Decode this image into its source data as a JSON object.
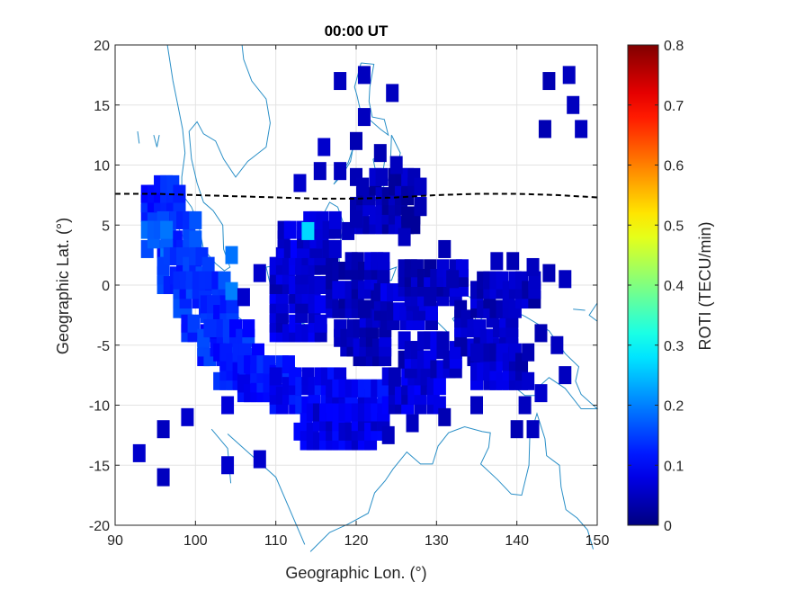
{
  "chart_data": {
    "type": "heatmap",
    "title": "00:00 UT",
    "xlabel": "Geographic Lon. (°)",
    "ylabel": "Geographic Lat. (°)",
    "xlim": [
      90,
      150
    ],
    "ylim": [
      -20,
      20
    ],
    "xticks": [
      90,
      100,
      110,
      120,
      130,
      140,
      150
    ],
    "yticks": [
      20,
      15,
      10,
      5,
      0,
      -5,
      -10,
      -15,
      -20
    ],
    "grid": true,
    "colorbar": {
      "label": "ROTI (TECU/min)",
      "range": [
        0,
        0.8
      ],
      "ticks": [
        0,
        0.1,
        0.2,
        0.3,
        0.4,
        0.5,
        0.6,
        0.7,
        0.8
      ],
      "colormap": "jet"
    },
    "magnetic_equator": {
      "style": "dashed",
      "color": "#000000",
      "points": [
        [
          90,
          7.6
        ],
        [
          95,
          7.6
        ],
        [
          100,
          7.5
        ],
        [
          105,
          7.4
        ],
        [
          110,
          7.3
        ],
        [
          115,
          7.2
        ],
        [
          120,
          7.2
        ],
        [
          125,
          7.3
        ],
        [
          130,
          7.5
        ],
        [
          135,
          7.6
        ],
        [
          140,
          7.6
        ],
        [
          145,
          7.5
        ],
        [
          150,
          7.3
        ]
      ]
    },
    "coastline_color": "#2a8fc7",
    "clusters": [
      {
        "lon": [
          94,
          98
        ],
        "lat": [
          6,
          9
        ],
        "roti": 0.12
      },
      {
        "lon": [
          96,
          100
        ],
        "lat": [
          3,
          6
        ],
        "roti": 0.14
      },
      {
        "lon": [
          94,
          97
        ],
        "lat": [
          3,
          5
        ],
        "roti": 0.18
      },
      {
        "lon": [
          96,
          102
        ],
        "lat": [
          0,
          3
        ],
        "roti": 0.13
      },
      {
        "lon": [
          98,
          104
        ],
        "lat": [
          -2,
          1
        ],
        "roti": 0.14
      },
      {
        "lon": [
          99,
          105
        ],
        "lat": [
          -4,
          -1
        ],
        "roti": 0.12
      },
      {
        "lon": [
          101,
          107
        ],
        "lat": [
          -6,
          -3
        ],
        "roti": 0.13
      },
      {
        "lon": [
          103,
          109
        ],
        "lat": [
          -8,
          -5
        ],
        "roti": 0.12
      },
      {
        "lon": [
          106,
          112
        ],
        "lat": [
          -9,
          -6
        ],
        "roti": 0.11
      },
      {
        "lon": [
          110,
          118
        ],
        "lat": [
          -10,
          -7
        ],
        "roti": 0.1
      },
      {
        "lon": [
          117,
          124
        ],
        "lat": [
          -11,
          -8
        ],
        "roti": 0.09
      },
      {
        "lon": [
          113,
          124
        ],
        "lat": [
          -13,
          -10
        ],
        "roti": 0.08
      },
      {
        "lon": [
          124,
          131
        ],
        "lat": [
          -10,
          -7
        ],
        "roti": 0.07
      },
      {
        "lon": [
          126,
          133
        ],
        "lat": [
          -7,
          -4
        ],
        "roti": 0.06
      },
      {
        "lon": [
          110,
          116
        ],
        "lat": [
          -4,
          0
        ],
        "roti": 0.07
      },
      {
        "lon": [
          110,
          116
        ],
        "lat": [
          0,
          3
        ],
        "roti": 0.06
      },
      {
        "lon": [
          118,
          124
        ],
        "lat": [
          -6,
          -2
        ],
        "roti": 0.05
      },
      {
        "lon": [
          117,
          124
        ],
        "lat": [
          -2,
          2
        ],
        "roti": 0.05
      },
      {
        "lon": [
          123,
          130
        ],
        "lat": [
          -3,
          0
        ],
        "roti": 0.06
      },
      {
        "lon": [
          126,
          134
        ],
        "lat": [
          -1,
          2
        ],
        "roti": 0.05
      },
      {
        "lon": [
          133,
          140
        ],
        "lat": [
          -6,
          -2
        ],
        "roti": 0.06
      },
      {
        "lon": [
          135,
          142
        ],
        "lat": [
          -8,
          -5
        ],
        "roti": 0.06
      },
      {
        "lon": [
          135,
          143
        ],
        "lat": [
          -2,
          1
        ],
        "roti": 0.05
      },
      {
        "lon": [
          111,
          118
        ],
        "lat": [
          3,
          6
        ],
        "roti": 0.07
      },
      {
        "lon": [
          120,
          128
        ],
        "lat": [
          5,
          9
        ],
        "roti": 0.04
      }
    ],
    "points": [
      {
        "lon": 93,
        "lat": -14,
        "roti": 0.06
      },
      {
        "lon": 96,
        "lat": -12,
        "roti": 0.05
      },
      {
        "lon": 99,
        "lat": -11,
        "roti": 0.06
      },
      {
        "lon": 96,
        "lat": -16,
        "roti": 0.05
      },
      {
        "lon": 104,
        "lat": -15,
        "roti": 0.06
      },
      {
        "lon": 108,
        "lat": -14.5,
        "roti": 0.06
      },
      {
        "lon": 104,
        "lat": -10,
        "roti": 0.07
      },
      {
        "lon": 118,
        "lat": 17,
        "roti": 0.05
      },
      {
        "lon": 121,
        "lat": 17.5,
        "roti": 0.05
      },
      {
        "lon": 124.5,
        "lat": 16,
        "roti": 0.05
      },
      {
        "lon": 121,
        "lat": 14,
        "roti": 0.05
      },
      {
        "lon": 120,
        "lat": 12,
        "roti": 0.04
      },
      {
        "lon": 116,
        "lat": 11.5,
        "roti": 0.06
      },
      {
        "lon": 123,
        "lat": 11,
        "roti": 0.04
      },
      {
        "lon": 125,
        "lat": 10,
        "roti": 0.05
      },
      {
        "lon": 118,
        "lat": 9.5,
        "roti": 0.05
      },
      {
        "lon": 115.5,
        "lat": 9.5,
        "roti": 0.05
      },
      {
        "lon": 113,
        "lat": 8.5,
        "roti": 0.06
      },
      {
        "lon": 144,
        "lat": 17,
        "roti": 0.04
      },
      {
        "lon": 146.5,
        "lat": 17.5,
        "roti": 0.05
      },
      {
        "lon": 147,
        "lat": 15,
        "roti": 0.05
      },
      {
        "lon": 143.5,
        "lat": 13,
        "roti": 0.04
      },
      {
        "lon": 148,
        "lat": 13,
        "roti": 0.05
      },
      {
        "lon": 114,
        "lat": 4.5,
        "roti": 0.27
      },
      {
        "lon": 104.5,
        "lat": 2.5,
        "roti": 0.19
      },
      {
        "lon": 104.5,
        "lat": -0.5,
        "roti": 0.2
      },
      {
        "lon": 119,
        "lat": 4.5,
        "roti": 0.05
      },
      {
        "lon": 131,
        "lat": 3,
        "roti": 0.04
      },
      {
        "lon": 132,
        "lat": 0.5,
        "roti": 0.04
      },
      {
        "lon": 137.5,
        "lat": 2,
        "roti": 0.05
      },
      {
        "lon": 139.5,
        "lat": 2,
        "roti": 0.04
      },
      {
        "lon": 142,
        "lat": 1.5,
        "roti": 0.05
      },
      {
        "lon": 144,
        "lat": 1,
        "roti": 0.04
      },
      {
        "lon": 146,
        "lat": 0.5,
        "roti": 0.05
      },
      {
        "lon": 143,
        "lat": -4,
        "roti": 0.04
      },
      {
        "lon": 145,
        "lat": -5,
        "roti": 0.05
      },
      {
        "lon": 146,
        "lat": -7.5,
        "roti": 0.05
      },
      {
        "lon": 143,
        "lat": -9,
        "roti": 0.06
      },
      {
        "lon": 141,
        "lat": -10,
        "roti": 0.05
      },
      {
        "lon": 142,
        "lat": -12,
        "roti": 0.05
      },
      {
        "lon": 140,
        "lat": -12,
        "roti": 0.04
      },
      {
        "lon": 127,
        "lat": -11.5,
        "roti": 0.05
      },
      {
        "lon": 124,
        "lat": -12.5,
        "roti": 0.05
      },
      {
        "lon": 131,
        "lat": -11,
        "roti": 0.04
      },
      {
        "lon": 135,
        "lat": -10,
        "roti": 0.05
      },
      {
        "lon": 120,
        "lat": 5.5,
        "roti": 0.04
      },
      {
        "lon": 108,
        "lat": 1,
        "roti": 0.06
      },
      {
        "lon": 106,
        "lat": -1,
        "roti": 0.06
      },
      {
        "lon": 128,
        "lat": 6.5,
        "roti": 0.04
      },
      {
        "lon": 126,
        "lat": 4,
        "roti": 0.05
      }
    ]
  }
}
